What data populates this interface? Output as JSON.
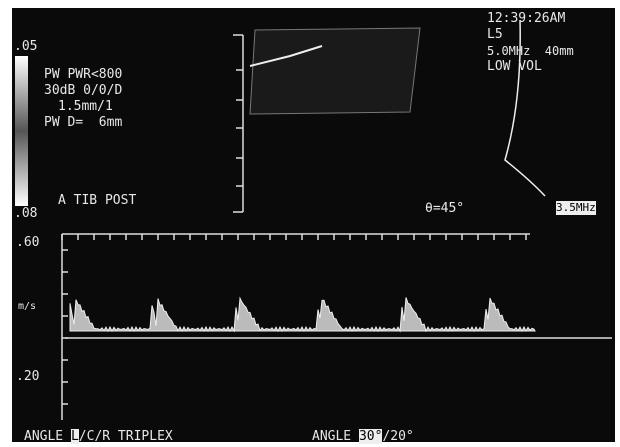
{
  "header": {
    "scale_top": ".05",
    "scale_bottom": ".08",
    "settings": [
      "PW PWR<800",
      "30dB 0/0/D",
      "1.5mm/1",
      "PW D=  6mm"
    ],
    "site": "A TIB POST",
    "time": "12:39:26AM",
    "probe": "L5",
    "frequency_depth": "5.0MHz  40mm",
    "volume": "LOW VOL"
  },
  "image": {
    "angle": "θ=45°",
    "frequency": "3.5MHz"
  },
  "spectrum": {
    "top_label": ".60",
    "unit": "m/s",
    "bottom_label": ".20"
  },
  "footer": {
    "left": [
      "ANGLE ",
      "L",
      "/C/R TRIPLEX"
    ],
    "right": [
      "ANGLE ",
      "30°",
      "/20°"
    ]
  }
}
